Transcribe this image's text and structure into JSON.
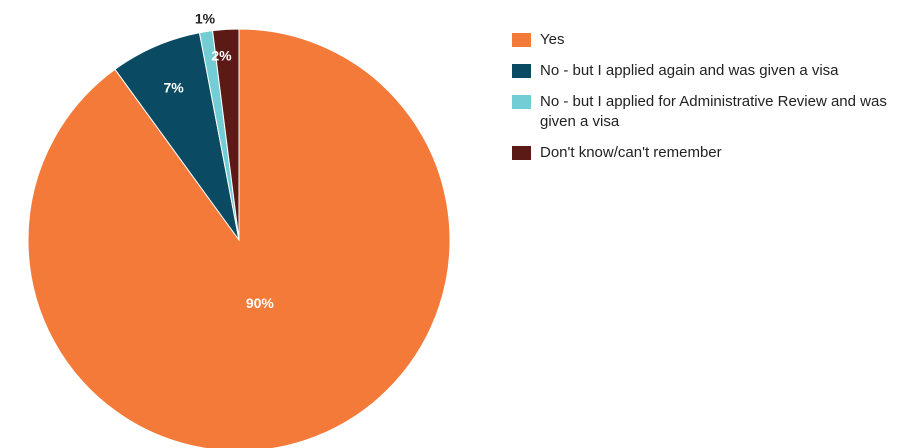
{
  "chart_data": {
    "type": "pie",
    "title": "",
    "start_angle_deg": 0,
    "direction": "clockwise",
    "legend_position": "right",
    "slices": [
      {
        "label": "Yes",
        "value": 90,
        "display": "90%",
        "color": "#F37A38"
      },
      {
        "label": "No - but I applied again and was given a visa",
        "value": 7,
        "display": "7%",
        "color": "#0A4A63"
      },
      {
        "label": "No - but I applied for Administrative Review and was given a visa",
        "value": 1,
        "display": "1%",
        "color": "#72CDD4"
      },
      {
        "label": "Don't know/can't remember",
        "value": 2,
        "display": "2%",
        "color": "#5B1A16"
      }
    ]
  }
}
